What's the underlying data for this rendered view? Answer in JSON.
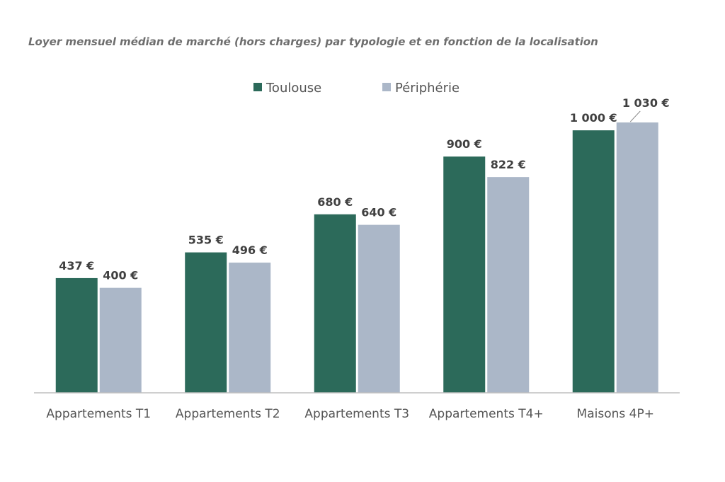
{
  "chart_data": {
    "type": "bar",
    "title": "Loyer mensuel médian de marché (hors charges) par typologie et en fonction de la localisation",
    "xlabel": "",
    "ylabel": "",
    "categories": [
      "Appartements T1",
      "Appartements T2",
      "Appartements T3",
      "Appartements T4+",
      "Maisons 4P+"
    ],
    "series": [
      {
        "name": "Toulouse",
        "color": "#2c6a5a",
        "values": [
          437,
          535,
          680,
          900,
          1000
        ],
        "labels": [
          "437 €",
          "535 €",
          "680 €",
          "900 €",
          "1 000 €"
        ]
      },
      {
        "name": "Périphérie",
        "color": "#abb7c8",
        "values": [
          400,
          496,
          640,
          822,
          1030
        ],
        "labels": [
          "400 €",
          "496 €",
          "640 €",
          "822 €",
          "1 030 €"
        ]
      }
    ],
    "ylim": [
      0,
      1030
    ],
    "grid": false,
    "legend": "top-center",
    "axis_color": "#bfbfbf"
  }
}
